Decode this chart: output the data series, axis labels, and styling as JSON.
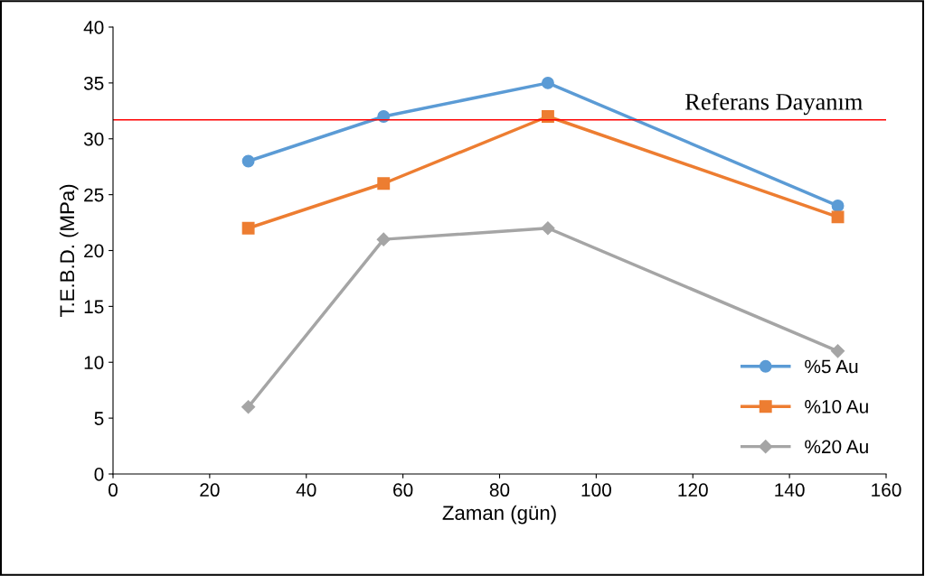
{
  "chart_data": {
    "type": "line",
    "xlabel": "Zaman (gün)",
    "ylabel": "T.E.B.D. (MPa)",
    "x": [
      28,
      56,
      90,
      150
    ],
    "series": [
      {
        "name": "%5 Au",
        "color": "#5b9bd5",
        "marker": "circle",
        "values": [
          28,
          32,
          35,
          24
        ]
      },
      {
        "name": "%10 Au",
        "color": "#ed7d31",
        "marker": "square",
        "values": [
          22,
          26,
          32,
          23
        ]
      },
      {
        "name": "%20 Au",
        "color": "#a5a5a5",
        "marker": "diamond",
        "values": [
          6,
          21,
          22,
          11
        ]
      }
    ],
    "xlim": [
      0,
      160
    ],
    "xticks": [
      0,
      20,
      40,
      60,
      80,
      100,
      120,
      140,
      160
    ],
    "ylim": [
      0,
      40
    ],
    "yticks": [
      0,
      5,
      10,
      15,
      20,
      25,
      30,
      35,
      40
    ],
    "ref_lines": [
      {
        "axis": "y",
        "value": 31.7,
        "label": "Referans Dayanım",
        "color": "#ff0000",
        "line_style": "solid"
      }
    ],
    "grid": false,
    "legend": "bottom right"
  }
}
